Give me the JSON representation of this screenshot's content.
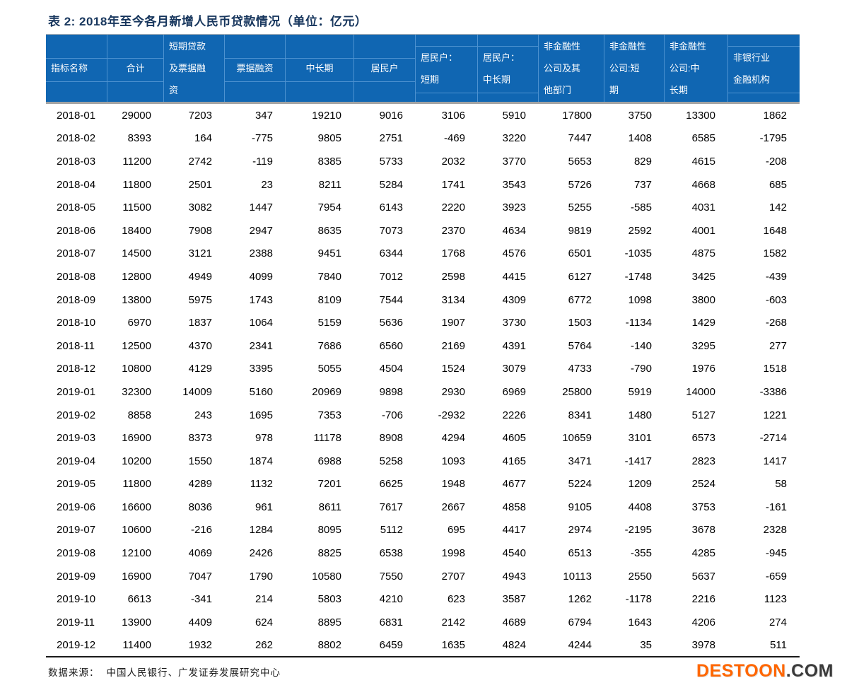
{
  "title": "表 2: 2018年至今各月新增人民币贷款情况（单位：亿元）",
  "chart_data": {
    "type": "table",
    "title": "表 2: 2018年至今各月新增人民币贷款情况（单位：亿元）",
    "unit": "亿元",
    "columns": [
      {
        "label": "指标名称",
        "display_lines": [
          "指标名称"
        ]
      },
      {
        "label": "合计",
        "display_lines": [
          "合计"
        ]
      },
      {
        "label": "短期贷款及票据融资",
        "display_lines": [
          "短期贷款",
          "及票据融",
          "资"
        ]
      },
      {
        "label": "票据融资",
        "display_lines": [
          "票据融资"
        ]
      },
      {
        "label": "中长期",
        "display_lines": [
          "中长期"
        ]
      },
      {
        "label": "居民户",
        "display_lines": [
          "居民户"
        ]
      },
      {
        "label": "居民户：短期",
        "display_lines": [
          "居民户：",
          "短期"
        ]
      },
      {
        "label": "居民户：中长期",
        "display_lines": [
          "居民户：",
          "中长期"
        ]
      },
      {
        "label": "非金融性公司及其他部门",
        "display_lines": [
          "非金融性",
          "公司及其",
          "他部门"
        ]
      },
      {
        "label": "非金融性公司:短期",
        "display_lines": [
          "非金融性",
          "公司:短",
          "期"
        ]
      },
      {
        "label": "非金融性公司:中长期",
        "display_lines": [
          "非金融性",
          "公司:中",
          "长期"
        ]
      },
      {
        "label": "非银行业金融机构",
        "display_lines": [
          "非银行业",
          "金融机构"
        ]
      }
    ],
    "rows": [
      {
        "label": "2018-01",
        "values": [
          29000,
          7203,
          347,
          19210,
          9016,
          3106,
          5910,
          17800,
          3750,
          13300,
          1862
        ]
      },
      {
        "label": "2018-02",
        "values": [
          8393,
          164,
          -775,
          9805,
          2751,
          -469,
          3220,
          7447,
          1408,
          6585,
          -1795
        ]
      },
      {
        "label": "2018-03",
        "values": [
          11200,
          2742,
          -119,
          8385,
          5733,
          2032,
          3770,
          5653,
          829,
          4615,
          -208
        ]
      },
      {
        "label": "2018-04",
        "values": [
          11800,
          2501,
          23,
          8211,
          5284,
          1741,
          3543,
          5726,
          737,
          4668,
          685
        ]
      },
      {
        "label": "2018-05",
        "values": [
          11500,
          3082,
          1447,
          7954,
          6143,
          2220,
          3923,
          5255,
          -585,
          4031,
          142
        ]
      },
      {
        "label": "2018-06",
        "values": [
          18400,
          7908,
          2947,
          8635,
          7073,
          2370,
          4634,
          9819,
          2592,
          4001,
          1648
        ]
      },
      {
        "label": "2018-07",
        "values": [
          14500,
          3121,
          2388,
          9451,
          6344,
          1768,
          4576,
          6501,
          -1035,
          4875,
          1582
        ]
      },
      {
        "label": "2018-08",
        "values": [
          12800,
          4949,
          4099,
          7840,
          7012,
          2598,
          4415,
          6127,
          -1748,
          3425,
          -439
        ]
      },
      {
        "label": "2018-09",
        "values": [
          13800,
          5975,
          1743,
          8109,
          7544,
          3134,
          4309,
          6772,
          1098,
          3800,
          -603
        ]
      },
      {
        "label": "2018-10",
        "values": [
          6970,
          1837,
          1064,
          5159,
          5636,
          1907,
          3730,
          1503,
          -1134,
          1429,
          -268
        ]
      },
      {
        "label": "2018-11",
        "values": [
          12500,
          4370,
          2341,
          7686,
          6560,
          2169,
          4391,
          5764,
          -140,
          3295,
          277
        ]
      },
      {
        "label": "2018-12",
        "values": [
          10800,
          4129,
          3395,
          5055,
          4504,
          1524,
          3079,
          4733,
          -790,
          1976,
          1518
        ]
      },
      {
        "label": "2019-01",
        "values": [
          32300,
          14009,
          5160,
          20969,
          9898,
          2930,
          6969,
          25800,
          5919,
          14000,
          -3386
        ]
      },
      {
        "label": "2019-02",
        "values": [
          8858,
          243,
          1695,
          7353,
          -706,
          -2932,
          2226,
          8341,
          1480,
          5127,
          1221
        ]
      },
      {
        "label": "2019-03",
        "values": [
          16900,
          8373,
          978,
          11178,
          8908,
          4294,
          4605,
          10659,
          3101,
          6573,
          -2714
        ]
      },
      {
        "label": "2019-04",
        "values": [
          10200,
          1550,
          1874,
          6988,
          5258,
          1093,
          4165,
          3471,
          -1417,
          2823,
          1417
        ]
      },
      {
        "label": "2019-05",
        "values": [
          11800,
          4289,
          1132,
          7201,
          6625,
          1948,
          4677,
          5224,
          1209,
          2524,
          58
        ]
      },
      {
        "label": "2019-06",
        "values": [
          16600,
          8036,
          961,
          8611,
          7617,
          2667,
          4858,
          9105,
          4408,
          3753,
          -161
        ]
      },
      {
        "label": "2019-07",
        "values": [
          10600,
          -216,
          1284,
          8095,
          5112,
          695,
          4417,
          2974,
          -2195,
          3678,
          2328
        ]
      },
      {
        "label": "2019-08",
        "values": [
          12100,
          4069,
          2426,
          8825,
          6538,
          1998,
          4540,
          6513,
          -355,
          4285,
          -945
        ]
      },
      {
        "label": "2019-09",
        "values": [
          16900,
          7047,
          1790,
          10580,
          7550,
          2707,
          4943,
          10113,
          2550,
          5637,
          -659
        ]
      },
      {
        "label": "2019-10",
        "values": [
          6613,
          -341,
          214,
          5803,
          4210,
          623,
          3587,
          1262,
          -1178,
          2216,
          1123
        ]
      },
      {
        "label": "2019-11",
        "values": [
          13900,
          4409,
          624,
          8895,
          6831,
          2142,
          4689,
          6794,
          1643,
          4206,
          274
        ]
      },
      {
        "label": "2019-12",
        "values": [
          11400,
          1932,
          262,
          8802,
          6459,
          1635,
          4824,
          4244,
          35,
          3978,
          511
        ]
      }
    ]
  },
  "footer": {
    "source_label": "数据来源：",
    "source_text": "中国人民银行、广发证券发展研究中心"
  },
  "watermark": {
    "primary": "DESTOON",
    "secondary": ".COM"
  },
  "colors": {
    "header_bg": "#1066b2",
    "header_grid": "#4d92d0",
    "title_color": "#17365d",
    "logo_primary": "#ff6600",
    "logo_secondary": "#3a3a3a"
  }
}
